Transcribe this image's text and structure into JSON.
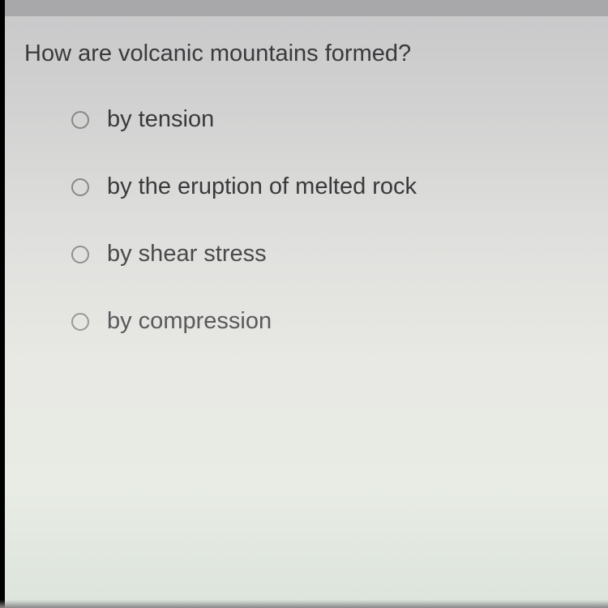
{
  "question": {
    "text": "How are volcanic mountains formed?"
  },
  "options": [
    {
      "label": "by tension",
      "selected": false
    },
    {
      "label": "by the eruption of melted rock",
      "selected": false
    },
    {
      "label": "by shear stress",
      "selected": false
    },
    {
      "label": "by compression",
      "selected": false
    }
  ]
}
